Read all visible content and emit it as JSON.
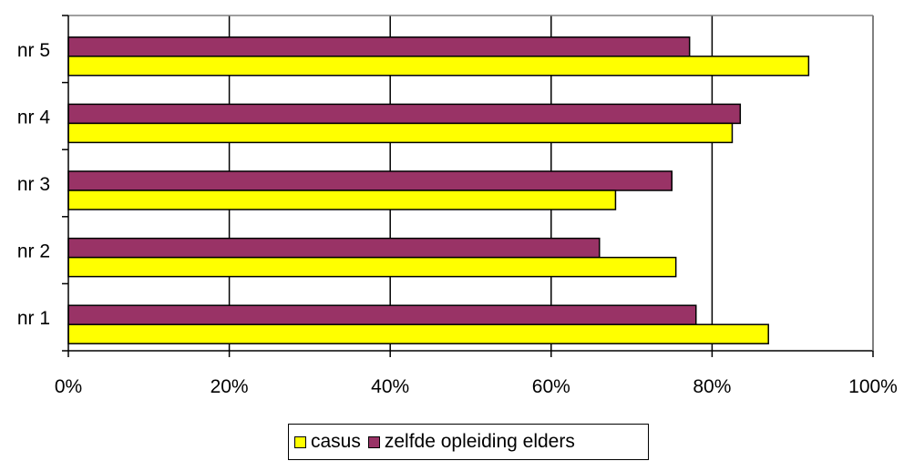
{
  "chart_data": {
    "type": "bar",
    "orientation": "horizontal",
    "categories": [
      "nr 1",
      "nr 2",
      "nr 3",
      "nr 4",
      "nr 5"
    ],
    "series": [
      {
        "name": "casus",
        "values": [
          87,
          75.5,
          68,
          82.5,
          92
        ],
        "color": "#FFFF00"
      },
      {
        "name": "zelfde opleiding elders",
        "values": [
          78,
          66,
          75,
          83.5,
          77.2
        ],
        "color": "#993366"
      }
    ],
    "x_tick_labels": [
      "0%",
      "20%",
      "40%",
      "60%",
      "80%",
      "100%"
    ],
    "xlim": [
      0,
      100
    ],
    "grid": "vertical",
    "legend_position": "bottom"
  }
}
